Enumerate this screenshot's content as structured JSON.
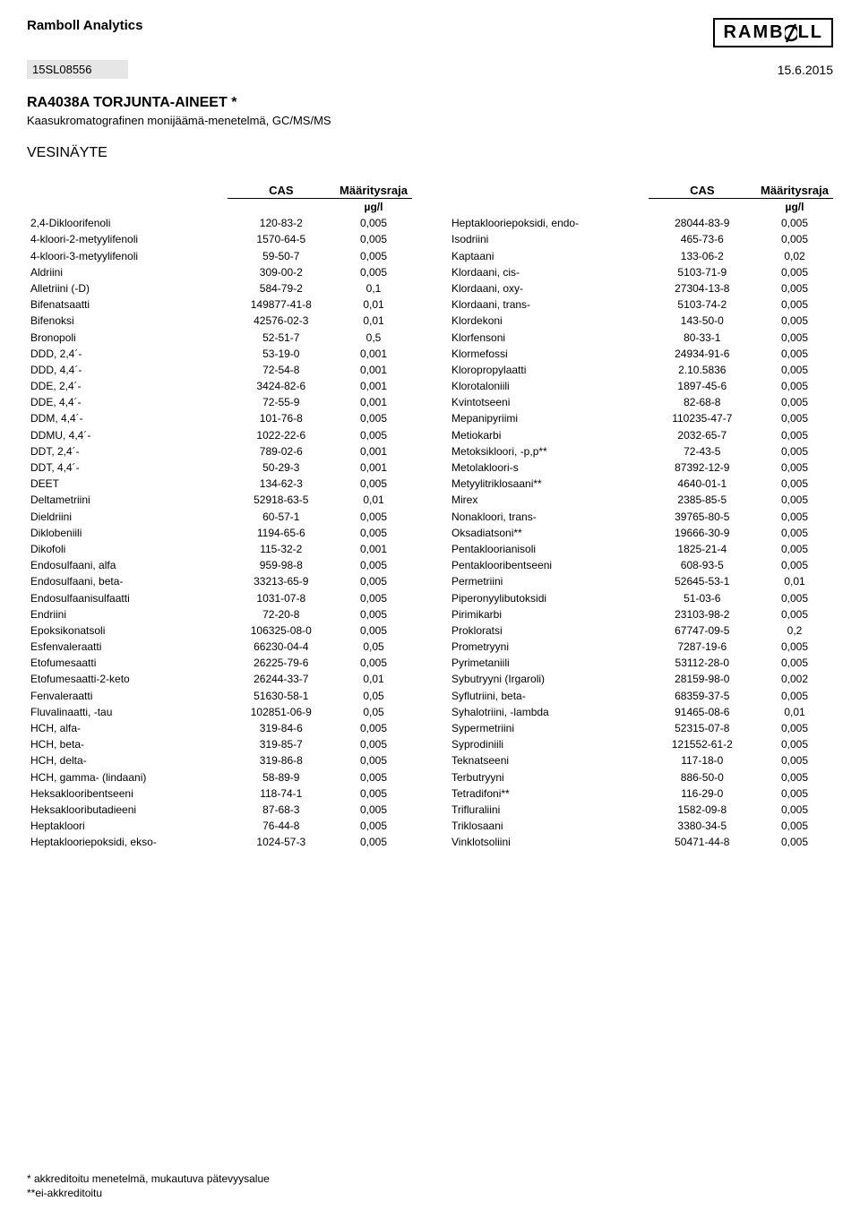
{
  "header": {
    "company": "Ramboll Analytics",
    "logo_text": "RAMBOLL",
    "sample_id": "15SL08556",
    "date": "15.6.2015",
    "report_code": "RA4038A TORJUNTA-AINEET *",
    "method": "Kaasukromatografinen monijäämä-menetelmä, GC/MS/MS",
    "sample_type": "VESINÄYTE"
  },
  "columns": {
    "cas": "CAS",
    "limit": "Määritysraja",
    "unit": "µg/l"
  },
  "left": [
    {
      "n": "2,4-Dikloorifenoli",
      "c": "120-83-2",
      "l": "0,005"
    },
    {
      "n": "4-kloori-2-metyylifenoli",
      "c": "1570-64-5",
      "l": "0,005"
    },
    {
      "n": "4-kloori-3-metyylifenoli",
      "c": "59-50-7",
      "l": "0,005"
    },
    {
      "n": "Aldriini",
      "c": "309-00-2",
      "l": "0,005"
    },
    {
      "n": "Alletriini (-D)",
      "c": "584-79-2",
      "l": "0,1"
    },
    {
      "n": "Bifenatsaatti",
      "c": "149877-41-8",
      "l": "0,01"
    },
    {
      "n": "Bifenoksi",
      "c": "42576-02-3",
      "l": "0,01"
    },
    {
      "n": "Bronopoli",
      "c": "52-51-7",
      "l": "0,5"
    },
    {
      "n": "DDD, 2,4´-",
      "c": "53-19-0",
      "l": "0,001"
    },
    {
      "n": "DDD, 4,4´-",
      "c": "72-54-8",
      "l": "0,001"
    },
    {
      "n": "DDE, 2,4´-",
      "c": "3424-82-6",
      "l": "0,001"
    },
    {
      "n": "DDE, 4,4´-",
      "c": "72-55-9",
      "l": "0,001"
    },
    {
      "n": "DDM, 4,4´-",
      "c": "101-76-8",
      "l": "0,005"
    },
    {
      "n": "DDMU, 4,4´-",
      "c": "1022-22-6",
      "l": "0,005"
    },
    {
      "n": "DDT, 2,4´-",
      "c": "789-02-6",
      "l": "0,001"
    },
    {
      "n": "DDT, 4,4´-",
      "c": "50-29-3",
      "l": "0,001"
    },
    {
      "n": "DEET",
      "c": "134-62-3",
      "l": "0,005"
    },
    {
      "n": "Deltametriini",
      "c": "52918-63-5",
      "l": "0,01"
    },
    {
      "n": "Dieldriini",
      "c": "60-57-1",
      "l": "0,005"
    },
    {
      "n": "Diklobeniili",
      "c": "1194-65-6",
      "l": "0,005"
    },
    {
      "n": "Dikofoli",
      "c": "115-32-2",
      "l": "0,001"
    },
    {
      "n": "Endosulfaani, alfa",
      "c": "959-98-8",
      "l": "0,005"
    },
    {
      "n": "Endosulfaani, beta-",
      "c": "33213-65-9",
      "l": "0,005"
    },
    {
      "n": "Endosulfaanisulfaatti",
      "c": "1031-07-8",
      "l": "0,005"
    },
    {
      "n": "Endriini",
      "c": "72-20-8",
      "l": "0,005"
    },
    {
      "n": "Epoksikonatsoli",
      "c": "106325-08-0",
      "l": "0,005"
    },
    {
      "n": "Esfenvaleraatti",
      "c": "66230-04-4",
      "l": "0,05"
    },
    {
      "n": "Etofumesaatti",
      "c": "26225-79-6",
      "l": "0,005"
    },
    {
      "n": "Etofumesaatti-2-keto",
      "c": "26244-33-7",
      "l": "0,01"
    },
    {
      "n": "Fenvaleraatti",
      "c": "51630-58-1",
      "l": "0,05"
    },
    {
      "n": "Fluvalinaatti, -tau",
      "c": "102851-06-9",
      "l": "0,05"
    },
    {
      "n": "HCH, alfa-",
      "c": "319-84-6",
      "l": "0,005"
    },
    {
      "n": "HCH, beta-",
      "c": "319-85-7",
      "l": "0,005"
    },
    {
      "n": "HCH, delta-",
      "c": "319-86-8",
      "l": "0,005"
    },
    {
      "n": "HCH, gamma- (lindaani)",
      "c": "58-89-9",
      "l": "0,005"
    },
    {
      "n": "Heksaklooribentseeni",
      "c": "118-74-1",
      "l": "0,005"
    },
    {
      "n": "Heksaklooributadieeni",
      "c": "87-68-3",
      "l": "0,005"
    },
    {
      "n": "Heptakloori",
      "c": "76-44-8",
      "l": "0,005"
    },
    {
      "n": "Heptaklooriepoksidi, ekso-",
      "c": "1024-57-3",
      "l": "0,005"
    }
  ],
  "right": [
    {
      "n": "Heptaklooriepoksidi, endo-",
      "c": "28044-83-9",
      "l": "0,005"
    },
    {
      "n": "Isodriini",
      "c": "465-73-6",
      "l": "0,005"
    },
    {
      "n": "Kaptaani",
      "c": "133-06-2",
      "l": "0,02"
    },
    {
      "n": "Klordaani, cis-",
      "c": "5103-71-9",
      "l": "0,005"
    },
    {
      "n": "Klordaani, oxy-",
      "c": "27304-13-8",
      "l": "0,005"
    },
    {
      "n": "Klordaani, trans-",
      "c": "5103-74-2",
      "l": "0,005"
    },
    {
      "n": "Klordekoni",
      "c": "143-50-0",
      "l": "0,005"
    },
    {
      "n": "Klorfensoni",
      "c": "80-33-1",
      "l": "0,005"
    },
    {
      "n": "Klormefossi",
      "c": "24934-91-6",
      "l": "0,005"
    },
    {
      "n": "Kloropropylaatti",
      "c": "2.10.5836",
      "l": "0,005"
    },
    {
      "n": "Klorotaloniili",
      "c": "1897-45-6",
      "l": "0,005"
    },
    {
      "n": "Kvintotseeni",
      "c": "82-68-8",
      "l": "0,005"
    },
    {
      "n": "Mepanipyriimi",
      "c": "110235-47-7",
      "l": "0,005"
    },
    {
      "n": "Metiokarbi",
      "c": "2032-65-7",
      "l": "0,005"
    },
    {
      "n": "Metoksikloori, -p,p**",
      "c": "72-43-5",
      "l": "0,005"
    },
    {
      "n": "Metolakloori-s",
      "c": "87392-12-9",
      "l": "0,005"
    },
    {
      "n": "Metyylitriklosaani**",
      "c": "4640-01-1",
      "l": "0,005"
    },
    {
      "n": "Mirex",
      "c": "2385-85-5",
      "l": "0,005"
    },
    {
      "n": "Nonakloori, trans-",
      "c": "39765-80-5",
      "l": "0,005"
    },
    {
      "n": "Oksadiatsoni**",
      "c": "19666-30-9",
      "l": "0,005"
    },
    {
      "n": "Pentakloorianisoli",
      "c": "1825-21-4",
      "l": "0,005"
    },
    {
      "n": "Pentaklooribentseeni",
      "c": "608-93-5",
      "l": "0,005"
    },
    {
      "n": "Permetriini",
      "c": "52645-53-1",
      "l": "0,01"
    },
    {
      "n": "Piperonyylibutoksidi",
      "c": "51-03-6",
      "l": "0,005"
    },
    {
      "n": "Pirimikarbi",
      "c": "23103-98-2",
      "l": "0,005"
    },
    {
      "n": "Prokloratsi",
      "c": "67747-09-5",
      "l": "0,2"
    },
    {
      "n": "Prometryyni",
      "c": "7287-19-6",
      "l": "0,005"
    },
    {
      "n": "Pyrimetaniili",
      "c": "53112-28-0",
      "l": "0,005"
    },
    {
      "n": "Sybutryyni (Irgaroli)",
      "c": "28159-98-0",
      "l": "0,002"
    },
    {
      "n": "Syflutriini, beta-",
      "c": "68359-37-5",
      "l": "0,005"
    },
    {
      "n": "Syhalotriini, -lambda",
      "c": "91465-08-6",
      "l": "0,01"
    },
    {
      "n": "Sypermetriini",
      "c": "52315-07-8",
      "l": "0,005"
    },
    {
      "n": "Syprodiniili",
      "c": "121552-61-2",
      "l": "0,005"
    },
    {
      "n": "Teknatseeni",
      "c": "117-18-0",
      "l": "0,005"
    },
    {
      "n": "Terbutryyni",
      "c": "886-50-0",
      "l": "0,005"
    },
    {
      "n": "Tetradifoni**",
      "c": "116-29-0",
      "l": "0,005"
    },
    {
      "n": "Trifluraliini",
      "c": "1582-09-8",
      "l": "0,005"
    },
    {
      "n": "Triklosaani",
      "c": "3380-34-5",
      "l": "0,005"
    },
    {
      "n": "Vinklotsoliini",
      "c": "50471-44-8",
      "l": "0,005"
    }
  ],
  "footer": {
    "note1": "* akkreditoitu menetelmä, mukautuva pätevyysalue",
    "note2": "**ei-akkreditoitu"
  }
}
